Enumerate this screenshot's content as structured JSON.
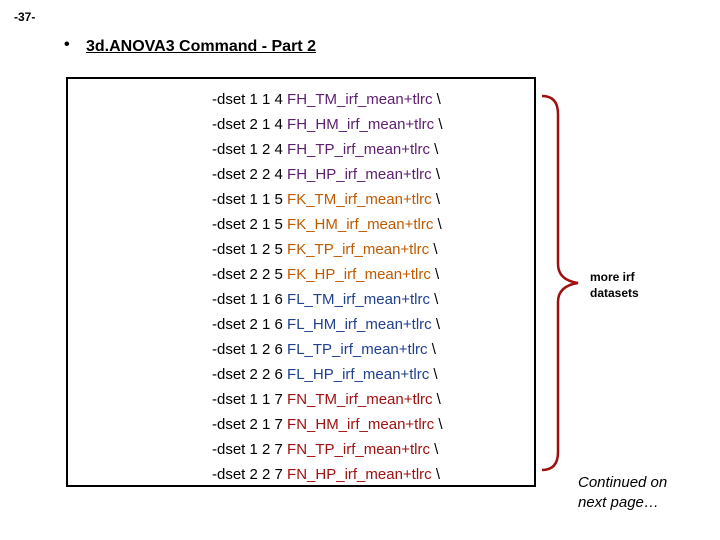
{
  "slide_number": "-37-",
  "bullet_char": "•",
  "title": "3d.ANOVA3 Command - Part 2",
  "colors": {
    "FH": "#5c1e6e",
    "FK": "#c05a00",
    "FL": "#1f3f8f",
    "FN": "#a01010",
    "brace": "#a01010"
  },
  "commands": [
    {
      "prefix": "-dset 1 1 4 ",
      "dataset": "FH_TM_irf_mean+tlrc",
      "suffix": " \\",
      "group": "FH"
    },
    {
      "prefix": "-dset 2 1 4 ",
      "dataset": "FH_HM_irf_mean+tlrc",
      "suffix": " \\",
      "group": "FH"
    },
    {
      "prefix": "-dset 1 2 4 ",
      "dataset": "FH_TP_irf_mean+tlrc",
      "suffix": " \\",
      "group": "FH"
    },
    {
      "prefix": "-dset 2 2 4 ",
      "dataset": "FH_HP_irf_mean+tlrc",
      "suffix": " \\",
      "group": "FH"
    },
    {
      "prefix": "-dset 1 1 5 ",
      "dataset": "FK_TM_irf_mean+tlrc",
      "suffix": " \\",
      "group": "FK"
    },
    {
      "prefix": "-dset 2 1 5 ",
      "dataset": "FK_HM_irf_mean+tlrc",
      "suffix": " \\",
      "group": "FK"
    },
    {
      "prefix": "-dset 1 2 5 ",
      "dataset": "FK_TP_irf_mean+tlrc",
      "suffix": " \\",
      "group": "FK"
    },
    {
      "prefix": "-dset 2 2 5 ",
      "dataset": "FK_HP_irf_mean+tlrc",
      "suffix": " \\",
      "group": "FK"
    },
    {
      "prefix": "-dset 1 1 6 ",
      "dataset": "FL_TM_irf_mean+tlrc",
      "suffix": " \\",
      "group": "FL"
    },
    {
      "prefix": "-dset 2 1 6 ",
      "dataset": "FL_HM_irf_mean+tlrc",
      "suffix": " \\",
      "group": "FL"
    },
    {
      "prefix": "-dset 1 2 6 ",
      "dataset": "FL_TP_irf_mean+tlrc",
      "suffix": " \\",
      "group": "FL"
    },
    {
      "prefix": "-dset 2 2 6 ",
      "dataset": "FL_HP_irf_mean+tlrc",
      "suffix": " \\",
      "group": "FL"
    },
    {
      "prefix": "-dset 1 1 7 ",
      "dataset": "FN_TM_irf_mean+tlrc",
      "suffix": " \\",
      "group": "FN"
    },
    {
      "prefix": "-dset 2 1 7 ",
      "dataset": "FN_HM_irf_mean+tlrc",
      "suffix": " \\",
      "group": "FN"
    },
    {
      "prefix": "-dset 1 2 7 ",
      "dataset": "FN_TP_irf_mean+tlrc",
      "suffix": " \\",
      "group": "FN"
    },
    {
      "prefix": "-dset 2 2 7 ",
      "dataset": "FN_HP_irf_mean+tlrc",
      "suffix": " \\",
      "group": "FN"
    }
  ],
  "note": {
    "line1": "more irf",
    "line2": "datasets"
  },
  "continued": {
    "line1": "Continued on",
    "line2": "next page…"
  }
}
